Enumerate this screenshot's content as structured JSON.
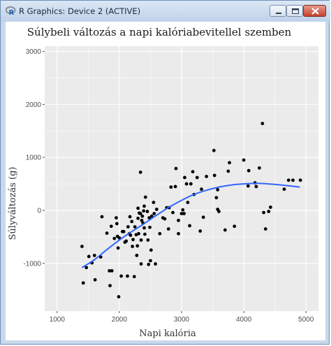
{
  "window": {
    "title": "R Graphics: Device 2 (ACTIVE)",
    "app_icon": "r-logo-icon",
    "buttons": [
      "minimize-icon",
      "maximize-icon",
      "close-icon"
    ]
  },
  "colors": {
    "panel": "#ebebeb",
    "grid": "#ffffff",
    "point": "#000000",
    "smooth": "#3366ff"
  },
  "chart_data": {
    "type": "scatter",
    "title": "Súlybeli változás a napi kalóriabevitellel szemben",
    "xlabel": "Napi kalória",
    "ylabel": "Súlyváltozás (g)",
    "xlim": [
      800,
      5200
    ],
    "ylim": [
      -1900,
      3100
    ],
    "xticks": [
      1000,
      2000,
      3000,
      4000,
      5000
    ],
    "yticks": [
      -1000,
      0,
      1000,
      2000,
      3000
    ],
    "grid": true,
    "points": [
      [
        1400,
        -680
      ],
      [
        1420,
        -1370
      ],
      [
        1470,
        -1080
      ],
      [
        1510,
        -870
      ],
      [
        1560,
        -990
      ],
      [
        1600,
        -850
      ],
      [
        1610,
        -1310
      ],
      [
        1700,
        -880
      ],
      [
        1720,
        -120
      ],
      [
        1800,
        -430
      ],
      [
        1840,
        -1140
      ],
      [
        1880,
        -1140
      ],
      [
        1850,
        -1420
      ],
      [
        1870,
        -300
      ],
      [
        1920,
        -530
      ],
      [
        1950,
        -140
      ],
      [
        1960,
        -250
      ],
      [
        1970,
        -490
      ],
      [
        1980,
        -710
      ],
      [
        1990,
        -1630
      ],
      [
        2000,
        -520
      ],
      [
        2030,
        -1240
      ],
      [
        2050,
        -400
      ],
      [
        2070,
        -400
      ],
      [
        2090,
        -600
      ],
      [
        2110,
        -580
      ],
      [
        2130,
        -1240
      ],
      [
        2140,
        -310
      ],
      [
        2160,
        -440
      ],
      [
        2170,
        -120
      ],
      [
        2180,
        -470
      ],
      [
        2200,
        -210
      ],
      [
        2210,
        -680
      ],
      [
        2220,
        -550
      ],
      [
        2240,
        -1250
      ],
      [
        2250,
        -310
      ],
      [
        2270,
        -460
      ],
      [
        2280,
        -850
      ],
      [
        2290,
        -670
      ],
      [
        2300,
        -150
      ],
      [
        2300,
        40
      ],
      [
        2310,
        -440
      ],
      [
        2320,
        -50
      ],
      [
        2340,
        -60
      ],
      [
        2340,
        720
      ],
      [
        2350,
        -560
      ],
      [
        2350,
        -1010
      ],
      [
        2360,
        -190
      ],
      [
        2370,
        -110
      ],
      [
        2380,
        -240
      ],
      [
        2390,
        -10
      ],
      [
        2400,
        80
      ],
      [
        2400,
        -330
      ],
      [
        2410,
        -450
      ],
      [
        2420,
        250
      ],
      [
        2450,
        -20
      ],
      [
        2460,
        -560
      ],
      [
        2470,
        -1020
      ],
      [
        2480,
        -140
      ],
      [
        2490,
        -320
      ],
      [
        2500,
        -950
      ],
      [
        2510,
        -750
      ],
      [
        2520,
        -110
      ],
      [
        2550,
        150
      ],
      [
        2560,
        -60
      ],
      [
        2580,
        -1010
      ],
      [
        2600,
        20
      ],
      [
        2650,
        -440
      ],
      [
        2700,
        -140
      ],
      [
        2730,
        -160
      ],
      [
        2760,
        50
      ],
      [
        2790,
        -350
      ],
      [
        2800,
        50
      ],
      [
        2830,
        440
      ],
      [
        2860,
        -40
      ],
      [
        2900,
        450
      ],
      [
        2910,
        790
      ],
      [
        2950,
        -440
      ],
      [
        2950,
        -190
      ],
      [
        3000,
        -60
      ],
      [
        3020,
        10
      ],
      [
        3040,
        -60
      ],
      [
        3050,
        620
      ],
      [
        3080,
        500
      ],
      [
        3100,
        150
      ],
      [
        3130,
        -290
      ],
      [
        3150,
        500
      ],
      [
        3180,
        730
      ],
      [
        3200,
        300
      ],
      [
        3250,
        620
      ],
      [
        3300,
        -390
      ],
      [
        3320,
        400
      ],
      [
        3350,
        -130
      ],
      [
        3400,
        640
      ],
      [
        3520,
        1130
      ],
      [
        3530,
        660
      ],
      [
        3560,
        240
      ],
      [
        3580,
        390
      ],
      [
        3580,
        20
      ],
      [
        3600,
        -20
      ],
      [
        3700,
        -370
      ],
      [
        3750,
        740
      ],
      [
        3770,
        900
      ],
      [
        3850,
        -300
      ],
      [
        4000,
        950
      ],
      [
        4070,
        460
      ],
      [
        4080,
        750
      ],
      [
        4180,
        520
      ],
      [
        4200,
        450
      ],
      [
        4250,
        800
      ],
      [
        4300,
        1640
      ],
      [
        4320,
        -40
      ],
      [
        4350,
        -350
      ],
      [
        4400,
        -20
      ],
      [
        4430,
        60
      ],
      [
        4650,
        400
      ],
      [
        4720,
        570
      ],
      [
        4790,
        570
      ],
      [
        4910,
        570
      ]
    ],
    "smooth": [
      [
        1400,
        -1080
      ],
      [
        1600,
        -930
      ],
      [
        1800,
        -740
      ],
      [
        2000,
        -560
      ],
      [
        2200,
        -400
      ],
      [
        2400,
        -250
      ],
      [
        2600,
        -90
      ],
      [
        2800,
        60
      ],
      [
        3000,
        190
      ],
      [
        3200,
        300
      ],
      [
        3400,
        380
      ],
      [
        3600,
        440
      ],
      [
        3800,
        480
      ],
      [
        4000,
        500
      ],
      [
        4200,
        510
      ],
      [
        4400,
        500
      ],
      [
        4600,
        480
      ],
      [
        4900,
        440
      ]
    ]
  }
}
